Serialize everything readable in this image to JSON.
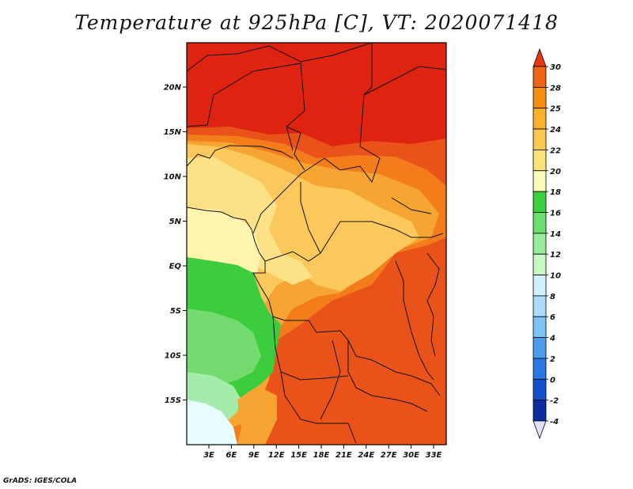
{
  "title": "Temperature at 925hPa [C], VT: 2020071418",
  "credit": "GrADS: IGES/COLA",
  "map": {
    "lon_labels": [
      "3E",
      "6E",
      "9E",
      "12E",
      "15E",
      "18E",
      "21E",
      "24E",
      "27E",
      "30E",
      "33E"
    ],
    "lat_labels": [
      "20N",
      "15N",
      "10N",
      "5N",
      "EQ",
      "5S",
      "10S",
      "15S"
    ],
    "colors": {
      "sea_cool": "#e6fcfe",
      "green_light": "#a4ecaa",
      "green_mid": "#74db70",
      "green_dark": "#3ccc3c",
      "pale_yellow": "#fff4ad",
      "yellow": "#fde187",
      "light_orange": "#fbc85b",
      "orange": "#f7a532",
      "dark_orange": "#f27d1a",
      "red_orange": "#e9531a",
      "red": "#de2410"
    }
  },
  "colorbar": {
    "labels": [
      "30",
      "28",
      "25",
      "24",
      "22",
      "20",
      "18",
      "16",
      "14",
      "12",
      "10",
      "8",
      "6",
      "4",
      "2",
      "0",
      "-2",
      "-4"
    ],
    "colors": [
      "#e8360e",
      "#f06412",
      "#f78e14",
      "#fbb02e",
      "#fdc84f",
      "#fee37a",
      "#fefabc",
      "#37d23c",
      "#6ae06e",
      "#98ec98",
      "#c6f7c4",
      "#d0f0fe",
      "#a8dcfa",
      "#7ec2f5",
      "#4c9cf0",
      "#2a78e6",
      "#1450cc",
      "#0a2ea0",
      "#081a78"
    ],
    "min_arrow_color": "#e0e0f8"
  }
}
